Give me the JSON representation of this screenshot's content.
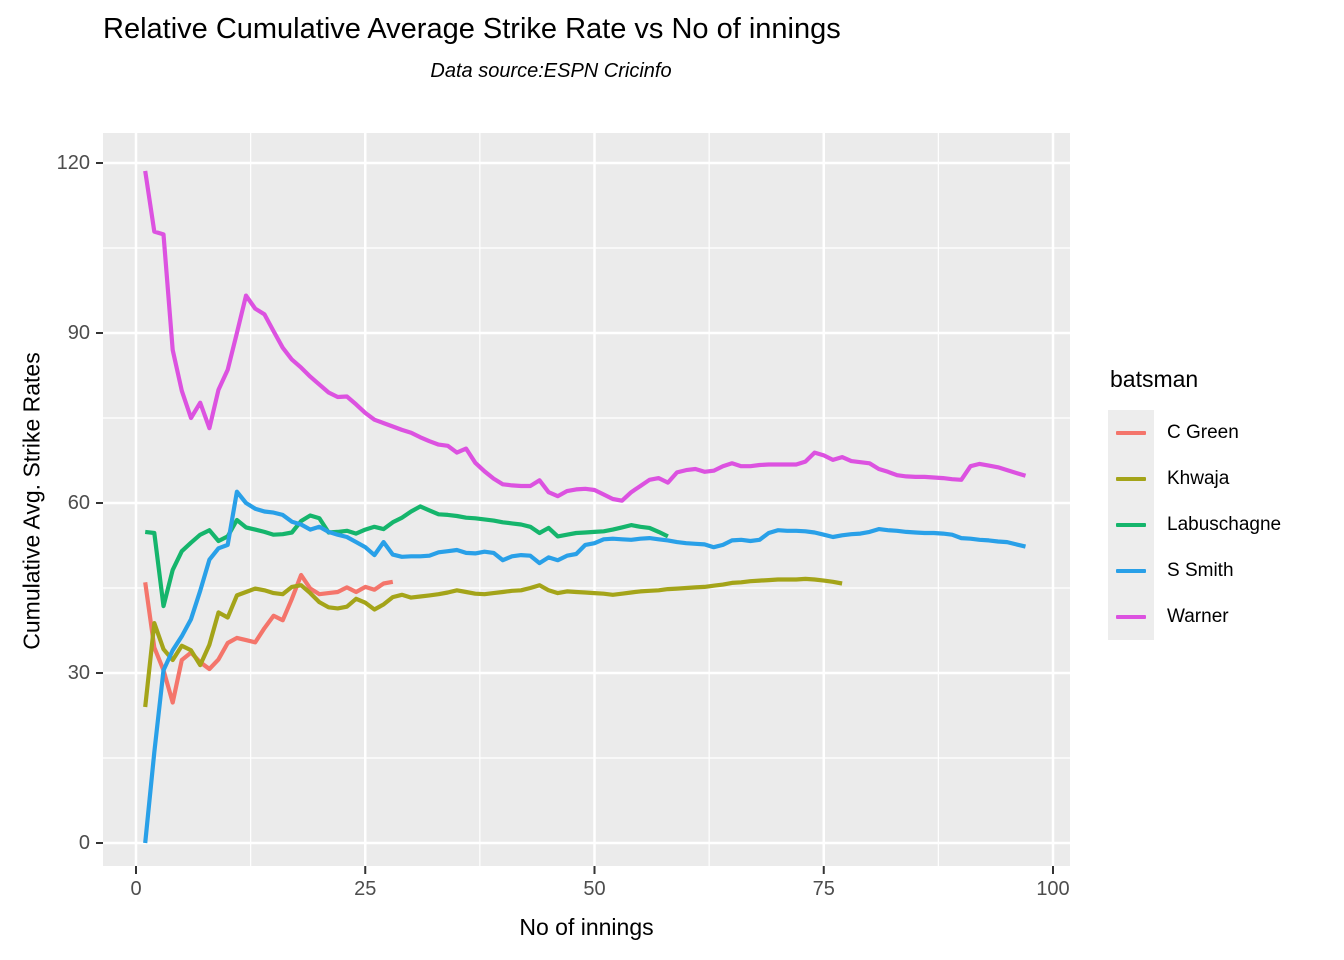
{
  "title": "Relative Cumulative Average Strike Rate vs No of innings",
  "subtitle": "Data source:ESPN Cricinfo",
  "axes": {
    "x_label": "No of innings",
    "y_label": "Cumulative Avg. Strike Rates",
    "x_tick_labels": [
      "0",
      "25",
      "50",
      "75",
      "100"
    ],
    "y_tick_labels": [
      "0",
      "30",
      "60",
      "90",
      "120"
    ]
  },
  "legend": {
    "title": "batsman",
    "items": [
      {
        "label": "C Green",
        "color": "#F4756B"
      },
      {
        "label": "Khwaja",
        "color": "#A4A419"
      },
      {
        "label": "Labuschagne",
        "color": "#15B56C"
      },
      {
        "label": "S Smith",
        "color": "#29A0E8"
      },
      {
        "label": "Warner",
        "color": "#DC52E0"
      }
    ]
  },
  "colors": {
    "panel_background": "#EBEBEB",
    "gridline": "#FFFFFF",
    "tick_mark": "#333333",
    "tick_text": "#4D4D4D",
    "legend_key_background": "#EDEDED"
  },
  "chart_data": {
    "type": "line",
    "title": "Relative Cumulative Average Strike Rate vs No of innings",
    "subtitle": "Data source:ESPN Cricinfo",
    "xlabel": "No of innings",
    "ylabel": "Cumulative Avg. Strike Rates",
    "xlim": [
      -3.6,
      105.4
    ],
    "ylim": [
      -4.1,
      125.3
    ],
    "x_ticks": [
      0,
      25,
      50,
      75,
      100
    ],
    "y_ticks": [
      0,
      30,
      60,
      90,
      120
    ],
    "x_minor_ticks": [
      12.5,
      37.5,
      62.5,
      87.5
    ],
    "y_minor_ticks": [
      15,
      45,
      75,
      105
    ],
    "grid": true,
    "legend_position": "right",
    "legend_title": "batsman",
    "x_start": 1,
    "x_step": 1,
    "series": [
      {
        "name": "C Green",
        "color": "#F4756B",
        "values": [
          46.0,
          34.5,
          30.5,
          24.8,
          32.3,
          33.6,
          31.9,
          30.7,
          32.4,
          35.3,
          36.2,
          35.8,
          35.4,
          37.9,
          40.1,
          39.3,
          43.1,
          47.3,
          44.9,
          43.9,
          44.1,
          44.3,
          45.1,
          44.3,
          45.2,
          44.7,
          45.8,
          46.1
        ]
      },
      {
        "name": "Khwaja",
        "color": "#A4A419",
        "values": [
          24.0,
          38.8,
          34.2,
          32.3,
          34.8,
          34.0,
          31.4,
          35.0,
          40.7,
          39.8,
          43.7,
          44.3,
          44.9,
          44.6,
          44.1,
          43.9,
          45.2,
          45.5,
          44.1,
          42.5,
          41.6,
          41.4,
          41.7,
          43.1,
          42.4,
          41.2,
          42.1,
          43.4,
          43.8,
          43.3,
          43.5,
          43.7,
          43.9,
          44.2,
          44.6,
          44.3,
          44.0,
          43.9,
          44.1,
          44.3,
          44.5,
          44.6,
          45.0,
          45.5,
          44.6,
          44.1,
          44.4,
          44.3,
          44.2,
          44.1,
          44.0,
          43.8,
          44.0,
          44.2,
          44.4,
          44.5,
          44.6,
          44.8,
          44.9,
          45.0,
          45.1,
          45.2,
          45.4,
          45.6,
          45.9,
          46.0,
          46.2,
          46.3,
          46.4,
          46.5,
          46.5,
          46.5,
          46.6,
          46.5,
          46.3,
          46.1,
          45.8
        ]
      },
      {
        "name": "Labuschagne",
        "color": "#15B56C",
        "values": [
          54.9,
          54.7,
          41.8,
          48.2,
          51.5,
          53.0,
          54.4,
          55.2,
          53.3,
          54.1,
          57.0,
          55.7,
          55.3,
          54.9,
          54.4,
          54.5,
          54.8,
          56.8,
          57.8,
          57.3,
          54.8,
          54.9,
          55.1,
          54.6,
          55.3,
          55.8,
          55.4,
          56.6,
          57.4,
          58.5,
          59.4,
          58.7,
          58.0,
          57.9,
          57.7,
          57.4,
          57.3,
          57.1,
          56.9,
          56.6,
          56.4,
          56.2,
          55.8,
          54.7,
          55.6,
          54.1,
          54.4,
          54.7,
          54.8,
          54.9,
          55.0,
          55.3,
          55.7,
          56.1,
          55.8,
          55.6,
          54.9,
          54.1
        ]
      },
      {
        "name": "S Smith",
        "color": "#29A0E8",
        "values": [
          0.0,
          16.0,
          30.5,
          34.0,
          36.5,
          39.5,
          44.5,
          50.0,
          52.0,
          52.6,
          62.0,
          60.0,
          59.0,
          58.5,
          58.3,
          57.9,
          56.7,
          56.2,
          55.3,
          55.8,
          54.9,
          54.4,
          54.0,
          53.1,
          52.2,
          50.8,
          53.1,
          50.9,
          50.5,
          50.6,
          50.6,
          50.7,
          51.3,
          51.5,
          51.7,
          51.2,
          51.1,
          51.4,
          51.2,
          49.9,
          50.6,
          50.8,
          50.7,
          49.4,
          50.4,
          49.9,
          50.7,
          51.0,
          52.6,
          52.9,
          53.6,
          53.7,
          53.6,
          53.5,
          53.7,
          53.8,
          53.6,
          53.4,
          53.1,
          52.9,
          52.8,
          52.7,
          52.2,
          52.6,
          53.4,
          53.5,
          53.3,
          53.5,
          54.7,
          55.2,
          55.1,
          55.1,
          55.0,
          54.8,
          54.4,
          54.0,
          54.3,
          54.5,
          54.6,
          54.9,
          55.4,
          55.2,
          55.1,
          54.9,
          54.8,
          54.7,
          54.7,
          54.6,
          54.4,
          53.8,
          53.7,
          53.5,
          53.4,
          53.2,
          53.1,
          52.7,
          52.3
        ]
      },
      {
        "name": "Warner",
        "color": "#DC52E0",
        "values": [
          118.6,
          107.9,
          107.4,
          87.0,
          79.8,
          75.0,
          77.7,
          73.2,
          80.0,
          83.5,
          90.0,
          96.6,
          94.3,
          93.3,
          90.3,
          87.4,
          85.3,
          83.9,
          82.3,
          80.9,
          79.5,
          78.7,
          78.8,
          77.4,
          75.9,
          74.7,
          74.1,
          73.5,
          72.9,
          72.4,
          71.6,
          70.9,
          70.3,
          70.1,
          68.9,
          69.6,
          67.1,
          65.6,
          64.3,
          63.3,
          63.1,
          63.0,
          63.0,
          64.0,
          61.9,
          61.2,
          62.1,
          62.4,
          62.5,
          62.3,
          61.5,
          60.7,
          60.4,
          61.9,
          63.0,
          64.1,
          64.4,
          63.6,
          65.4,
          65.8,
          66.0,
          65.5,
          65.7,
          66.5,
          67.0,
          66.5,
          66.5,
          66.7,
          66.8,
          66.8,
          66.8,
          66.8,
          67.3,
          68.9,
          68.4,
          67.6,
          68.1,
          67.4,
          67.2,
          67.0,
          66.0,
          65.5,
          64.9,
          64.7,
          64.6,
          64.6,
          64.5,
          64.4,
          64.2,
          64.1,
          66.5,
          66.9,
          66.6,
          66.3,
          65.8,
          65.3,
          64.8
        ]
      }
    ]
  }
}
